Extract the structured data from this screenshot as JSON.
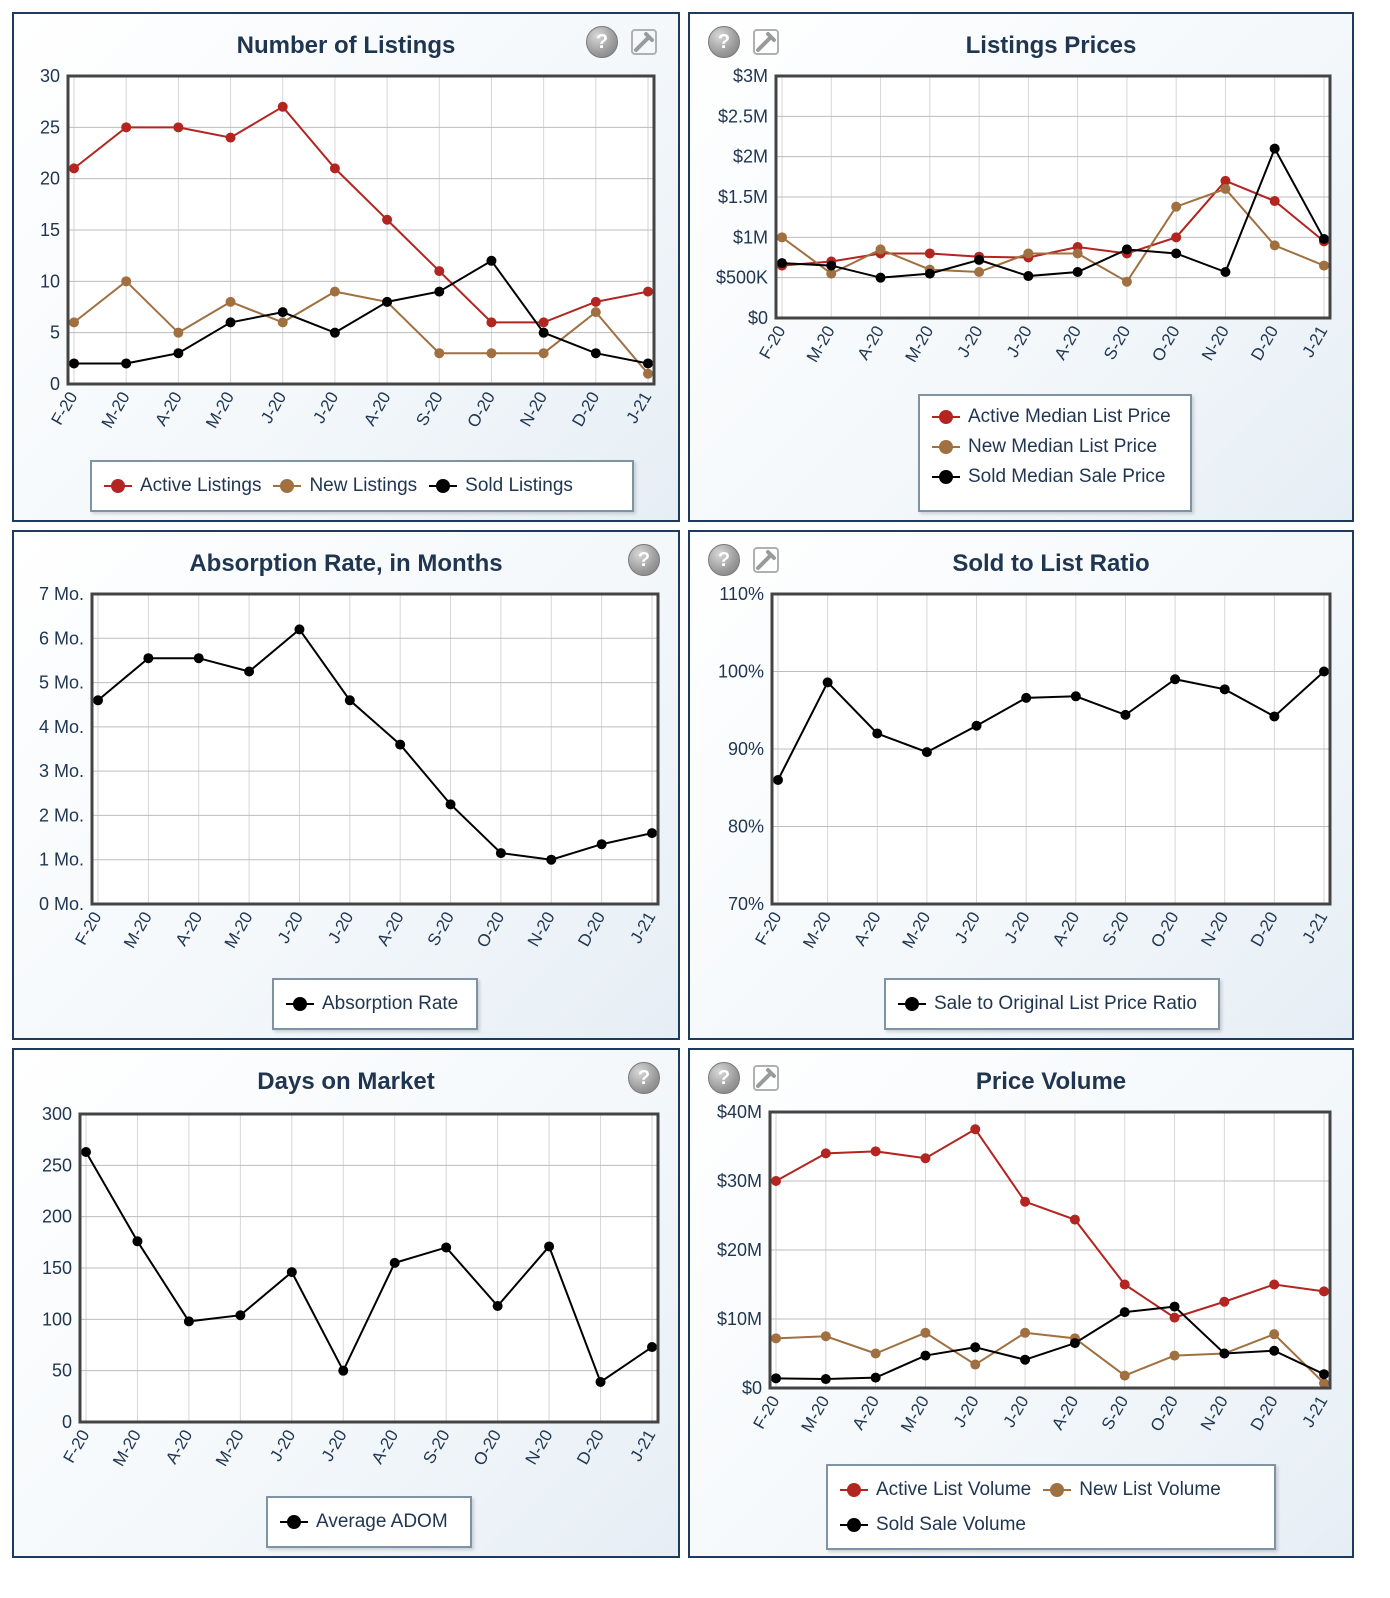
{
  "charts": [
    {
      "id": "number-of-listings",
      "title": "Number of Listings",
      "icons": [
        "help-icon",
        "tool-icon"
      ],
      "chart_data": {
        "type": "line",
        "categories": [
          "F-20",
          "M-20",
          "A-20",
          "M-20",
          "J-20",
          "J-20",
          "A-20",
          "S-20",
          "O-20",
          "N-20",
          "D-20",
          "J-21"
        ],
        "ylim": [
          0,
          30
        ],
        "yticks": [
          0,
          5,
          10,
          15,
          20,
          25,
          30
        ],
        "ytick_labels": [
          "0",
          "5",
          "10",
          "15",
          "20",
          "25",
          "30"
        ],
        "series": [
          {
            "name": "Active Listings",
            "color": "#b22520",
            "values": [
              21,
              25,
              25,
              24,
              27,
              21,
              16,
              11,
              6,
              6,
              8,
              9
            ]
          },
          {
            "name": "New Listings",
            "color": "#a07040",
            "values": [
              6,
              10,
              5,
              8,
              6,
              9,
              8,
              3,
              3,
              3,
              7,
              1
            ]
          },
          {
            "name": "Sold Listings",
            "color": "#000000",
            "values": [
              2,
              2,
              3,
              6,
              7,
              5,
              8,
              9,
              12,
              5,
              3,
              2
            ]
          }
        ]
      }
    },
    {
      "id": "listings-prices",
      "title": "Listings Prices",
      "icons": [
        "help-icon",
        "tool-icon"
      ],
      "chart_data": {
        "type": "line",
        "categories": [
          "F-20",
          "M-20",
          "A-20",
          "M-20",
          "J-20",
          "J-20",
          "A-20",
          "S-20",
          "O-20",
          "N-20",
          "D-20",
          "J-21"
        ],
        "ylim": [
          0,
          3000000
        ],
        "yticks": [
          0,
          500000,
          1000000,
          1500000,
          2000000,
          2500000,
          3000000
        ],
        "ytick_labels": [
          "$0",
          "$500K",
          "$1M",
          "$1.5M",
          "$2M",
          "$2.5M",
          "$3M"
        ],
        "series": [
          {
            "name": "Active Median List Price",
            "color": "#b22520",
            "values": [
              650000,
              700000,
              800000,
              800000,
              760000,
              750000,
              880000,
              800000,
              1000000,
              1700000,
              1450000,
              950000
            ]
          },
          {
            "name": "New Median List Price",
            "color": "#a07040",
            "values": [
              1000000,
              550000,
              850000,
              600000,
              570000,
              800000,
              800000,
              450000,
              1380000,
              1600000,
              900000,
              650000
            ]
          },
          {
            "name": "Sold Median Sale Price",
            "color": "#000000",
            "values": [
              680000,
              650000,
              500000,
              550000,
              720000,
              520000,
              570000,
              850000,
              800000,
              570000,
              2100000,
              980000
            ]
          }
        ]
      }
    },
    {
      "id": "absorption-rate",
      "title": "Absorption Rate, in Months",
      "icons": [
        "help-icon"
      ],
      "chart_data": {
        "type": "line",
        "categories": [
          "F-20",
          "M-20",
          "A-20",
          "M-20",
          "J-20",
          "J-20",
          "A-20",
          "S-20",
          "O-20",
          "N-20",
          "D-20",
          "J-21"
        ],
        "ylim": [
          0,
          7
        ],
        "yticks": [
          0,
          1,
          2,
          3,
          4,
          5,
          6,
          7
        ],
        "ytick_labels": [
          "0 Mo.",
          "1 Mo.",
          "2 Mo.",
          "3 Mo.",
          "4 Mo.",
          "5 Mo.",
          "6 Mo.",
          "7 Mo."
        ],
        "series": [
          {
            "name": "Absorption Rate",
            "color": "#000000",
            "values": [
              4.6,
              5.55,
              5.55,
              5.25,
              6.2,
              4.6,
              3.6,
              2.25,
              1.15,
              1.0,
              1.35,
              1.6
            ]
          }
        ]
      }
    },
    {
      "id": "sold-to-list-ratio",
      "title": "Sold to List Ratio",
      "icons": [
        "help-icon",
        "tool-icon"
      ],
      "chart_data": {
        "type": "line",
        "categories": [
          "F-20",
          "M-20",
          "A-20",
          "M-20",
          "J-20",
          "J-20",
          "A-20",
          "S-20",
          "O-20",
          "N-20",
          "D-20",
          "J-21"
        ],
        "ylim": [
          70,
          110
        ],
        "yticks": [
          70,
          80,
          90,
          100,
          110
        ],
        "ytick_labels": [
          "70%",
          "80%",
          "90%",
          "100%",
          "110%"
        ],
        "series": [
          {
            "name": "Sale to Original List Price Ratio",
            "color": "#000000",
            "values": [
              86,
              98.6,
              92,
              89.6,
              93,
              96.6,
              96.8,
              94.4,
              99,
              97.7,
              94.2,
              100
            ]
          }
        ]
      }
    },
    {
      "id": "days-on-market",
      "title": "Days on Market",
      "icons": [
        "help-icon"
      ],
      "chart_data": {
        "type": "line",
        "categories": [
          "F-20",
          "M-20",
          "A-20",
          "M-20",
          "J-20",
          "J-20",
          "A-20",
          "S-20",
          "O-20",
          "N-20",
          "D-20",
          "J-21"
        ],
        "ylim": [
          0,
          300
        ],
        "yticks": [
          0,
          50,
          100,
          150,
          200,
          250,
          300
        ],
        "ytick_labels": [
          "0",
          "50",
          "100",
          "150",
          "200",
          "250",
          "300"
        ],
        "series": [
          {
            "name": "Average ADOM",
            "color": "#000000",
            "values": [
              263,
              176,
              98,
              104,
              146,
              50,
              155,
              170,
              113,
              171,
              39,
              73
            ]
          }
        ]
      }
    },
    {
      "id": "price-volume",
      "title": "Price Volume",
      "icons": [
        "help-icon",
        "tool-icon"
      ],
      "chart_data": {
        "type": "line",
        "categories": [
          "F-20",
          "M-20",
          "A-20",
          "M-20",
          "J-20",
          "J-20",
          "A-20",
          "S-20",
          "O-20",
          "N-20",
          "D-20",
          "J-21"
        ],
        "ylim": [
          0,
          40000000
        ],
        "yticks": [
          0,
          10000000,
          20000000,
          30000000,
          40000000
        ],
        "ytick_labels": [
          "$0",
          "$10M",
          "$20M",
          "$30M",
          "$40M"
        ],
        "series": [
          {
            "name": "Active List Volume",
            "color": "#b22520",
            "values": [
              30000000,
              34000000,
              34300000,
              33300000,
              37500000,
              27000000,
              24400000,
              15000000,
              10200000,
              12500000,
              15000000,
              14000000
            ]
          },
          {
            "name": "New List Volume",
            "color": "#a07040",
            "values": [
              7200000,
              7500000,
              5000000,
              8000000,
              3400000,
              8000000,
              7200000,
              1800000,
              4700000,
              5000000,
              7800000,
              700000
            ]
          },
          {
            "name": "Sold Sale Volume",
            "color": "#000000",
            "values": [
              1400000,
              1300000,
              1500000,
              4700000,
              5900000,
              4100000,
              6500000,
              11000000,
              11800000,
              5000000,
              5400000,
              2000000
            ]
          }
        ]
      }
    }
  ]
}
